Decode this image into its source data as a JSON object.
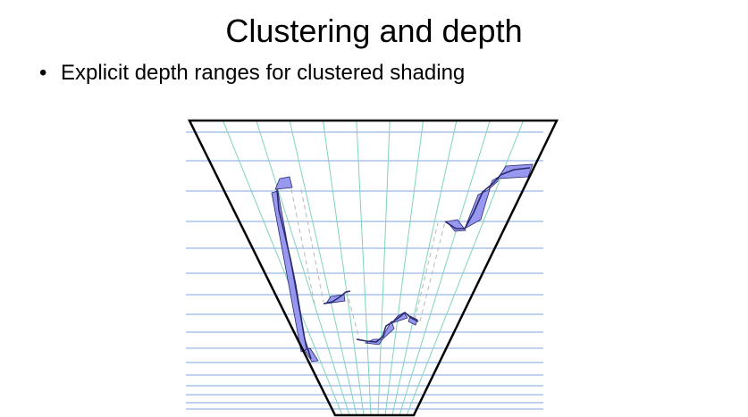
{
  "slide": {
    "title": "Clustering and depth",
    "bullets": [
      {
        "marker": "•",
        "text": "Explicit depth ranges for clustered shading"
      }
    ]
  },
  "diagram": {
    "grid_color": "#7fa6dc",
    "frustum_line_color": "#7fd4b8",
    "frustum_outline_color": "#000000",
    "cluster_fill": "#8d8df0",
    "cluster_stroke": "#2a2a6e",
    "connector_color": "#b8b8b8"
  }
}
